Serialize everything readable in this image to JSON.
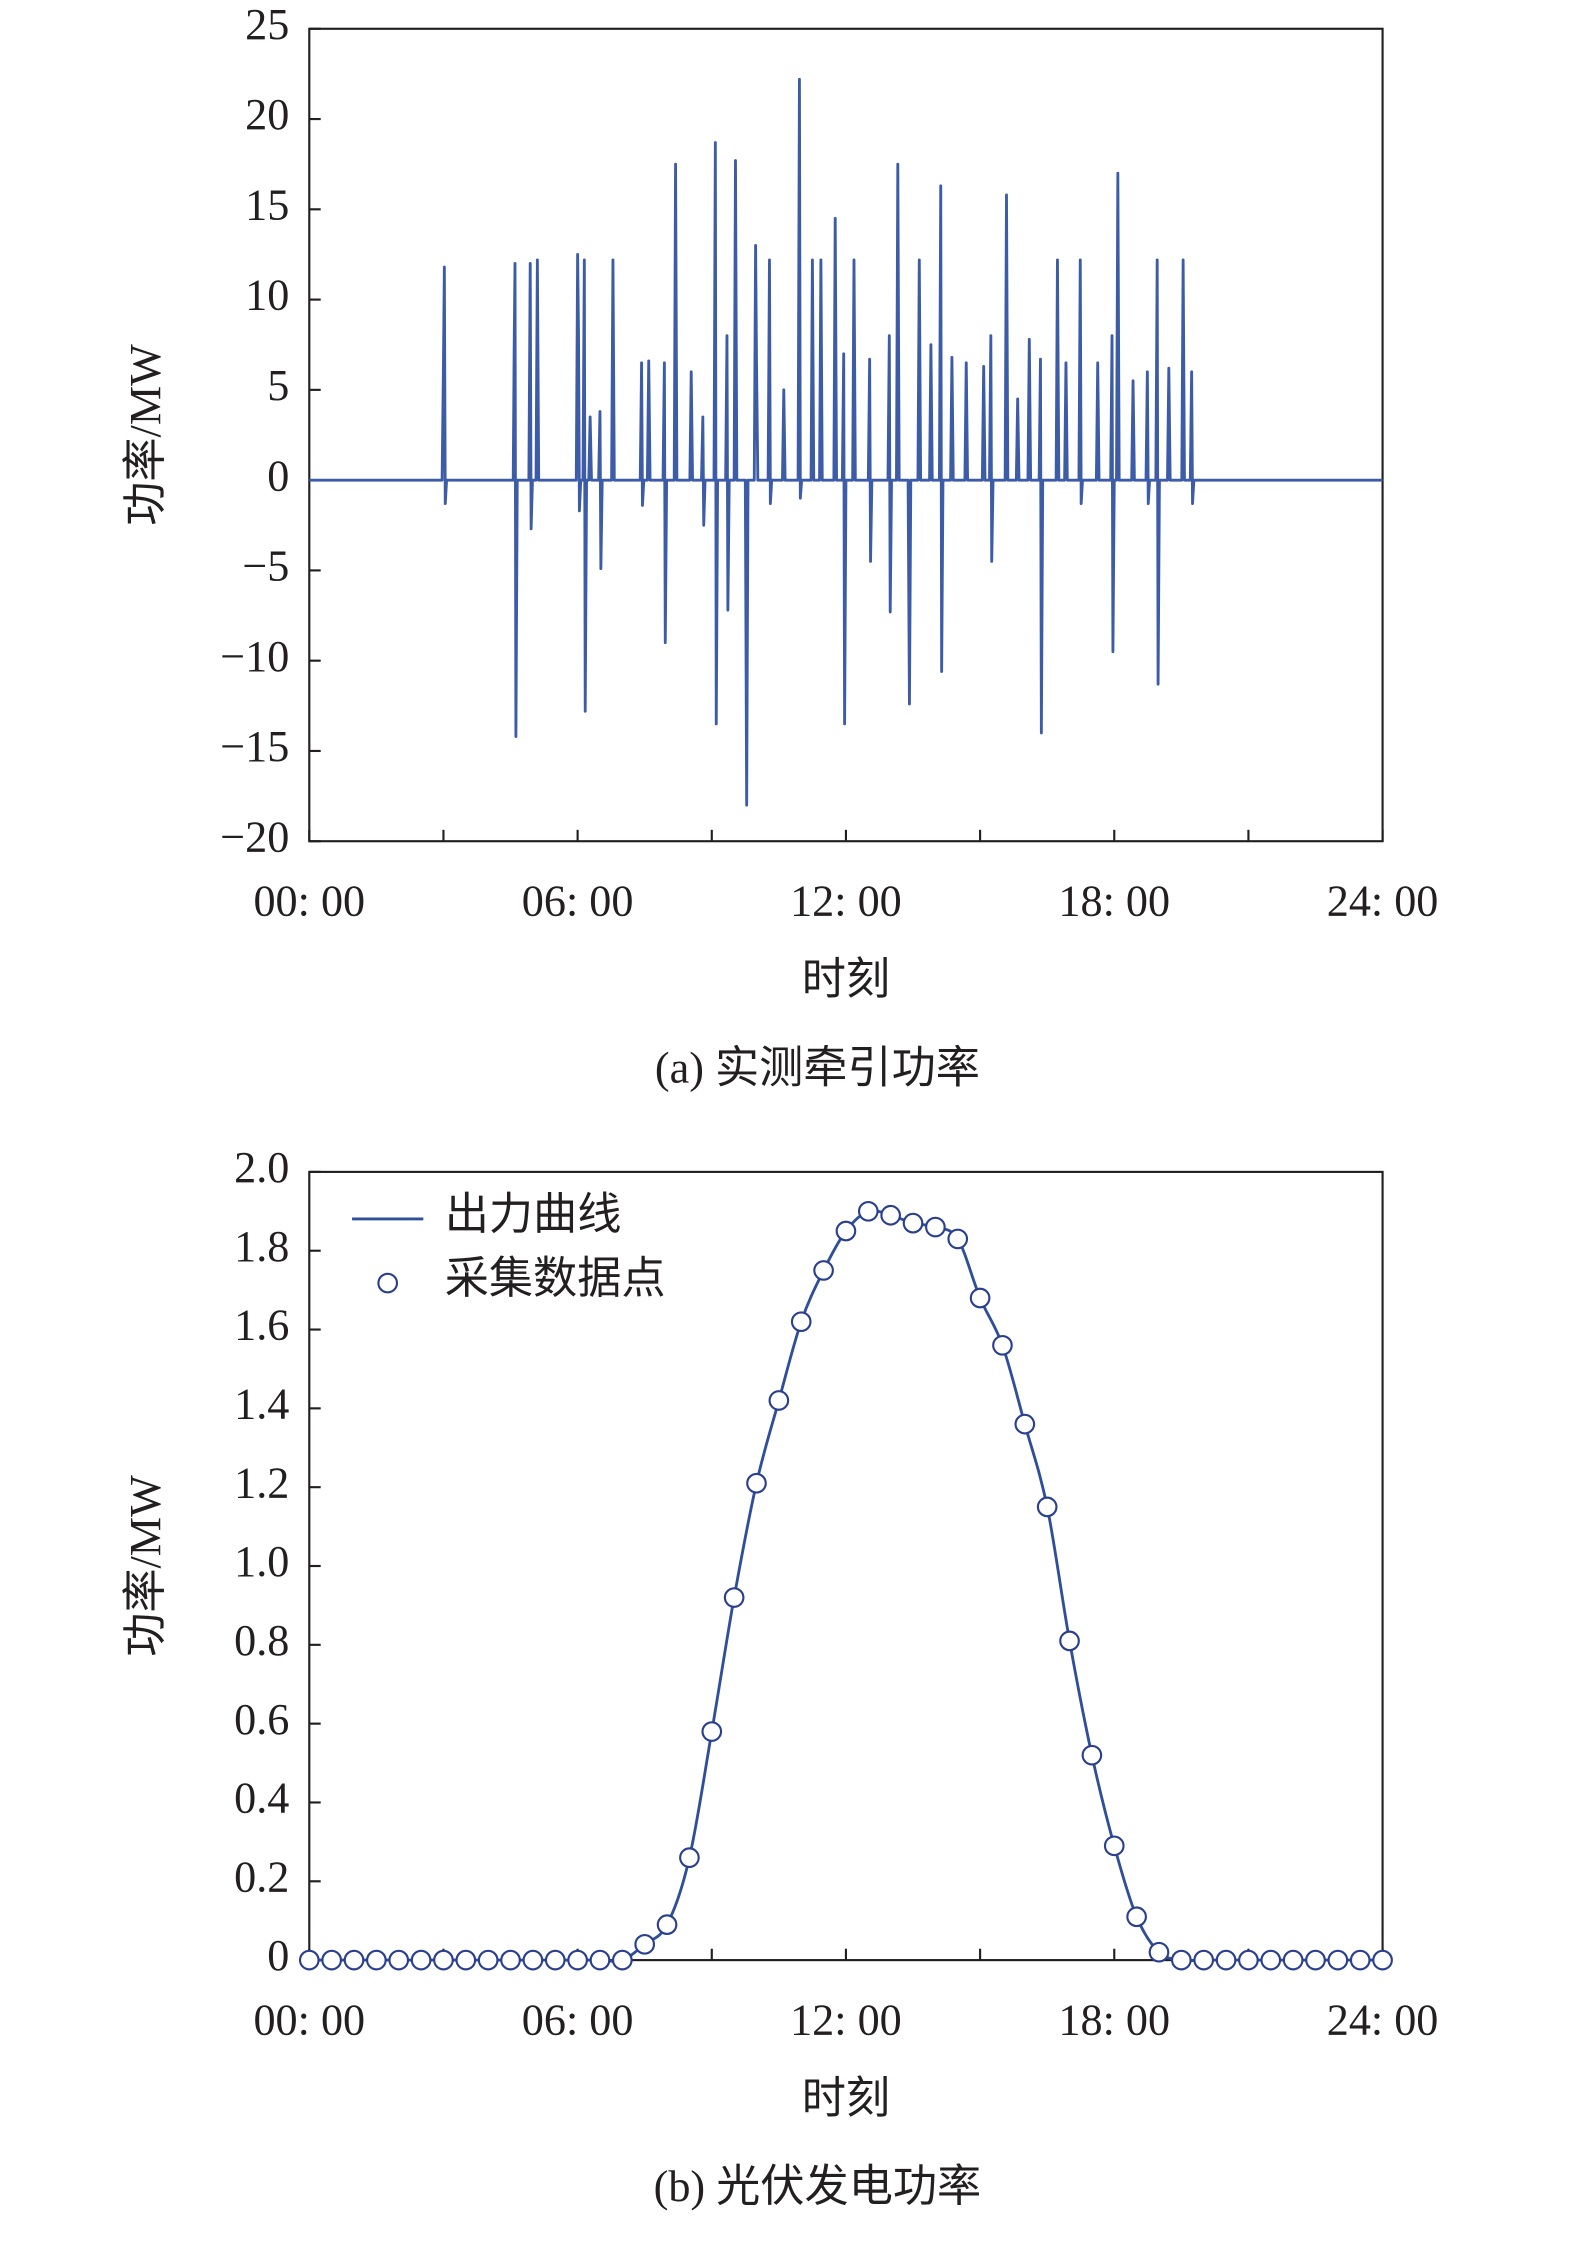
{
  "chart_data": [
    {
      "type": "line",
      "caption": "(a) 实测牵引功率",
      "xlabel": "时刻",
      "ylabel": "功率/MW",
      "series": [
        {
          "name": "实测牵引功率",
          "color": "#3d5ca8",
          "x": [
            0,
            2.97,
            3.0,
            3.02,
            3.04,
            3.07,
            4.56,
            4.58,
            4.6,
            4.62,
            4.65,
            4.91,
            4.94,
            4.96,
            4.99,
            5.07,
            5.1,
            5.13,
            5.97,
            6.0,
            6.02,
            6.04,
            6.07,
            6.12,
            6.15,
            6.17,
            6.2,
            6.25,
            6.28,
            6.31,
            6.47,
            6.5,
            6.52,
            6.55,
            6.76,
            6.79,
            6.82,
            7.4,
            7.43,
            7.45,
            7.48,
            7.56,
            7.59,
            7.62,
            7.91,
            7.94,
            7.96,
            7.99,
            8.16,
            8.19,
            8.22,
            8.51,
            8.54,
            8.57,
            8.77,
            8.8,
            8.82,
            8.85,
            9.05,
            9.08,
            9.1,
            9.13,
            9.31,
            9.34,
            9.36,
            9.39,
            9.5,
            9.53,
            9.56,
            9.75,
            9.78,
            9.81,
            9.95,
            9.98,
            10.0,
            10.03,
            10.26,
            10.29,
            10.31,
            10.34,
            10.58,
            10.61,
            10.64,
            10.93,
            10.96,
            10.98,
            11.01,
            11.22,
            11.25,
            11.28,
            11.41,
            11.44,
            11.47,
            11.73,
            11.76,
            11.79,
            11.92,
            11.95,
            11.97,
            12.0,
            12.15,
            12.18,
            12.21,
            12.5,
            12.53,
            12.55,
            12.58,
            12.94,
            12.97,
            12.99,
            13.02,
            13.13,
            13.16,
            13.19,
            13.39,
            13.42,
            13.45,
            13.61,
            13.64,
            13.67,
            13.87,
            13.9,
            13.93,
            14.09,
            14.12,
            14.14,
            14.17,
            14.34,
            14.37,
            14.4,
            14.66,
            14.69,
            14.72,
            15.05,
            15.08,
            15.11,
            15.21,
            15.24,
            15.26,
            15.29,
            15.56,
            15.59,
            15.62,
            15.81,
            15.84,
            15.87,
            16.07,
            16.1,
            16.13,
            16.32,
            16.35,
            16.37,
            16.4,
            16.7,
            16.73,
            16.76,
            16.89,
            16.92,
            16.95,
            17.21,
            17.24,
            17.26,
            17.29,
            17.6,
            17.63,
            17.66,
            17.92,
            17.95,
            17.97,
            18.0,
            18.05,
            18.08,
            18.11,
            18.39,
            18.42,
            18.45,
            18.71,
            18.74,
            18.76,
            18.79,
            18.93,
            18.96,
            18.98,
            19.01,
            19.19,
            19.22,
            19.25,
            19.51,
            19.54,
            19.57,
            19.7,
            19.73,
            19.75,
            19.78,
            24
          ],
          "values": [
            0,
            0,
            6.5,
            11.8,
            -1.3,
            0,
            0,
            7,
            12,
            -14.2,
            0,
            0,
            12,
            -2.7,
            0,
            0,
            12.2,
            0,
            0,
            12.5,
            8,
            -1.7,
            0,
            0,
            12.2,
            -12.8,
            0,
            0,
            3.5,
            0,
            0,
            3.8,
            -4.9,
            0,
            0,
            12.2,
            0,
            0,
            6.5,
            -1.4,
            0,
            0,
            6.6,
            0,
            0,
            6.5,
            -9,
            0,
            0,
            17.5,
            0,
            0,
            6,
            0,
            0,
            3.5,
            -2.5,
            0,
            0,
            18.7,
            -13.5,
            0,
            0,
            8,
            -7.2,
            0,
            0,
            17.7,
            0,
            0,
            -18,
            0,
            0,
            13,
            6.6,
            0,
            0,
            12.2,
            -1.3,
            0,
            0,
            5,
            0,
            0,
            22.2,
            -1,
            0,
            0,
            12.2,
            0,
            0,
            12.2,
            0,
            0,
            14.5,
            0,
            0,
            7,
            -13.5,
            0,
            0,
            12.2,
            0,
            0,
            6.7,
            -4.5,
            0,
            0,
            8,
            -7.3,
            0,
            0,
            17.5,
            0,
            0,
            -12.4,
            0,
            0,
            12.2,
            0,
            0,
            7.5,
            0,
            0,
            16.3,
            -10.6,
            0,
            0,
            6.8,
            0,
            0,
            6.5,
            0,
            0,
            6.3,
            0,
            0,
            8,
            -4.5,
            0,
            0,
            15.8,
            0,
            0,
            4.5,
            0,
            0,
            7.8,
            0,
            0,
            6.7,
            -14,
            0,
            0,
            12.2,
            0,
            0,
            6.5,
            0,
            0,
            12.2,
            -1.3,
            0,
            0,
            6.5,
            0,
            0,
            8,
            -9.5,
            0,
            0,
            17,
            0,
            0,
            5.5,
            0,
            0,
            6,
            -1.3,
            0,
            0,
            12.2,
            -11.3,
            0,
            0,
            6.2,
            0,
            0,
            12.2,
            0,
            0,
            6,
            -1.3,
            0,
            0
          ]
        }
      ],
      "xlim": [
        0,
        24
      ],
      "xticks": [
        {
          "value": 0,
          "label": "00: 00"
        },
        {
          "value": 6,
          "label": "06: 00"
        },
        {
          "value": 12,
          "label": "12: 00"
        },
        {
          "value": 18,
          "label": "18: 00"
        },
        {
          "value": 24,
          "label": "24: 00"
        }
      ],
      "xticks_minor": [
        3,
        9,
        15,
        21
      ],
      "ylim": [
        -20,
        25
      ],
      "yticks": [
        {
          "value": -20,
          "label": "−20"
        },
        {
          "value": -15,
          "label": "−15"
        },
        {
          "value": -10,
          "label": "−10"
        },
        {
          "value": -5,
          "label": "−5"
        },
        0,
        5,
        10,
        15,
        20,
        25
      ]
    },
    {
      "type": "line",
      "caption": "(b) 光伏发电功率",
      "xlabel": "时刻",
      "ylabel": "功率/MW",
      "legend": "upper left",
      "x": [
        0,
        0.5,
        1,
        1.5,
        2,
        2.5,
        3,
        3.5,
        4,
        4.5,
        5,
        5.5,
        6,
        6.5,
        7,
        7.5,
        8,
        8.5,
        9,
        9.5,
        10,
        10.5,
        11,
        11.5,
        12,
        12.5,
        13,
        13.5,
        14,
        14.5,
        15,
        15.5,
        16,
        16.5,
        17,
        17.5,
        18,
        18.5,
        19,
        19.5,
        20,
        20.5,
        21,
        21.5,
        22,
        22.5,
        23,
        23.5,
        24
      ],
      "series": [
        {
          "name": "出力曲线",
          "type": "line",
          "color": "#2f4f9a",
          "values": [
            0,
            0,
            0,
            0,
            0,
            0,
            0,
            0,
            0,
            0,
            0,
            0,
            0,
            0,
            0,
            0.04,
            0.09,
            0.26,
            0.58,
            0.92,
            1.21,
            1.42,
            1.62,
            1.75,
            1.85,
            1.9,
            1.89,
            1.87,
            1.86,
            1.83,
            1.68,
            1.56,
            1.36,
            1.15,
            0.81,
            0.52,
            0.29,
            0.11,
            0.02,
            0,
            0,
            0,
            0,
            0,
            0,
            0,
            0,
            0,
            0
          ]
        },
        {
          "name": "采集数据点",
          "type": "scatter",
          "color": "#2b3f8f",
          "values": [
            0,
            0,
            0,
            0,
            0,
            0,
            0,
            0,
            0,
            0,
            0,
            0,
            0,
            0,
            0,
            0.04,
            0.09,
            0.26,
            0.58,
            0.92,
            1.21,
            1.42,
            1.62,
            1.75,
            1.85,
            1.9,
            1.89,
            1.87,
            1.86,
            1.83,
            1.68,
            1.56,
            1.36,
            1.15,
            0.81,
            0.52,
            0.29,
            0.11,
            0.02,
            0,
            0,
            0,
            0,
            0,
            0,
            0,
            0,
            0,
            0
          ]
        }
      ],
      "xlim": [
        0,
        24
      ],
      "xticks": [
        {
          "value": 0,
          "label": "00: 00"
        },
        {
          "value": 6,
          "label": "06: 00"
        },
        {
          "value": 12,
          "label": "12: 00"
        },
        {
          "value": 18,
          "label": "18: 00"
        },
        {
          "value": 24,
          "label": "24: 00"
        }
      ],
      "xticks_minor": [
        3,
        9,
        15,
        21
      ],
      "ylim": [
        0,
        2
      ],
      "yticks": [
        0,
        0.2,
        0.4,
        0.6,
        0.8,
        {
          "value": 1,
          "label": "1.0"
        },
        1.2,
        1.4,
        1.6,
        1.8,
        {
          "value": 2,
          "label": "2.0"
        }
      ]
    }
  ]
}
